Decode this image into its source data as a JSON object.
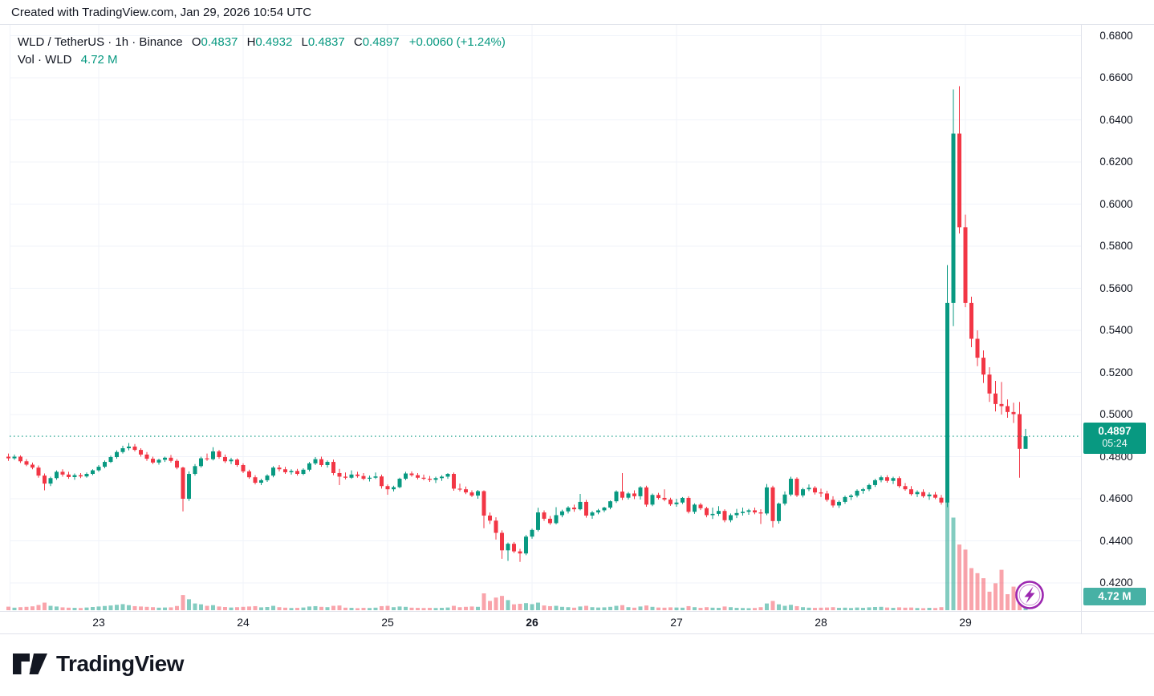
{
  "attribution": "Created with TradingView.com, Jan 29, 2026 10:54 UTC",
  "legend": {
    "title": "WLD / TetherUS · 1h · Binance",
    "ohlc": [
      {
        "label": "O",
        "value": "0.4837"
      },
      {
        "label": "H",
        "value": "0.4932"
      },
      {
        "label": "L",
        "value": "0.4837"
      },
      {
        "label": "C",
        "value": "0.4897"
      }
    ],
    "change": "+0.0060 (+1.24%)",
    "volume_label": "Vol · WLD",
    "volume_value": "4.72 M"
  },
  "price_scale": {
    "labels": [
      "0.6800",
      "0.6600",
      "0.6400",
      "0.6200",
      "0.6000",
      "0.5800",
      "0.5600",
      "0.5400",
      "0.5200",
      "0.5000",
      "0.4800",
      "0.4600",
      "0.4400",
      "0.4200"
    ],
    "last_price_label": "0.4897",
    "countdown": "05:24",
    "volume_badge": "4.72 M"
  },
  "time_scale": {
    "labels": [
      {
        "text": "23",
        "index": 15,
        "bold": false
      },
      {
        "text": "24",
        "index": 39,
        "bold": false
      },
      {
        "text": "25",
        "index": 63,
        "bold": false
      },
      {
        "text": "26",
        "index": 87,
        "bold": true
      },
      {
        "text": "27",
        "index": 111,
        "bold": false
      },
      {
        "text": "28",
        "index": 135,
        "bold": false
      },
      {
        "text": "29",
        "index": 159,
        "bold": false
      }
    ]
  },
  "logo_text": "TradingView",
  "colors": {
    "up": "#089981",
    "down": "#f23645",
    "vol_up": "rgba(8,153,129,0.5)",
    "vol_down": "rgba(242,54,69,0.45)",
    "price_line": "#089981",
    "price_badge_bg": "#089981",
    "volume_badge_bg": "#47b1a5",
    "flash": "#9c27b0",
    "grid": "#f0f3fa",
    "border": "#e0e3eb",
    "text": "#131722"
  },
  "chart_data": {
    "type": "candlestick",
    "title": "WLD / TetherUS · 1h · Binance",
    "symbol": "WLD / TetherUS",
    "interval": "1h",
    "exchange": "Binance",
    "last_price": 0.4897,
    "last_candle": {
      "open": 0.4837,
      "high": 0.4932,
      "low": 0.4837,
      "close": 0.4897,
      "volume_m": 4.72
    },
    "change": "+0.0060 (+1.24%)",
    "y_axis": {
      "min": 0.42,
      "max": 0.68,
      "step": 0.02
    },
    "volume_axis": {
      "max_millions": 80
    },
    "x_range": "Jan 22 09:00 - Jan 29 10:00 UTC, hourly",
    "candles_format": [
      "open",
      "high",
      "low",
      "close",
      "volume_millions"
    ],
    "candles": [
      [
        0.48,
        0.4815,
        0.478,
        0.4792,
        2.1
      ],
      [
        0.4792,
        0.481,
        0.4785,
        0.48,
        1.5
      ],
      [
        0.48,
        0.4806,
        0.477,
        0.4778,
        1.8
      ],
      [
        0.4778,
        0.4788,
        0.4755,
        0.4762,
        2.0
      ],
      [
        0.4762,
        0.4772,
        0.474,
        0.4748,
        2.3
      ],
      [
        0.4748,
        0.4758,
        0.47,
        0.471,
        3.1
      ],
      [
        0.471,
        0.472,
        0.464,
        0.4672,
        4.5
      ],
      [
        0.4672,
        0.4705,
        0.466,
        0.4698,
        2.6
      ],
      [
        0.4698,
        0.4735,
        0.469,
        0.4728,
        2.2
      ],
      [
        0.4728,
        0.474,
        0.4705,
        0.4715,
        1.7
      ],
      [
        0.4715,
        0.4728,
        0.4695,
        0.4703,
        1.5
      ],
      [
        0.4703,
        0.472,
        0.469,
        0.4712,
        1.4
      ],
      [
        0.4712,
        0.4722,
        0.4698,
        0.4706,
        1.3
      ],
      [
        0.4706,
        0.4725,
        0.47,
        0.4718,
        1.6
      ],
      [
        0.4718,
        0.474,
        0.4712,
        0.4735,
        1.9
      ],
      [
        0.4735,
        0.476,
        0.4728,
        0.4752,
        2.2
      ],
      [
        0.4752,
        0.4782,
        0.4745,
        0.4775,
        2.5
      ],
      [
        0.4775,
        0.4805,
        0.477,
        0.4798,
        2.8
      ],
      [
        0.4798,
        0.483,
        0.479,
        0.4822,
        3.2
      ],
      [
        0.4822,
        0.4852,
        0.4815,
        0.484,
        3.6
      ],
      [
        0.484,
        0.4865,
        0.483,
        0.4848,
        3.0
      ],
      [
        0.4848,
        0.486,
        0.4825,
        0.4832,
        2.4
      ],
      [
        0.4832,
        0.484,
        0.48,
        0.481,
        2.2
      ],
      [
        0.481,
        0.4822,
        0.478,
        0.479,
        2.0
      ],
      [
        0.479,
        0.48,
        0.4765,
        0.4772,
        1.8
      ],
      [
        0.4772,
        0.479,
        0.4762,
        0.4785,
        1.5
      ],
      [
        0.4785,
        0.48,
        0.4775,
        0.4795,
        1.6
      ],
      [
        0.4795,
        0.4808,
        0.4772,
        0.478,
        1.7
      ],
      [
        0.478,
        0.4788,
        0.474,
        0.4748,
        2.5
      ],
      [
        0.4748,
        0.4752,
        0.454,
        0.46,
        9.0
      ],
      [
        0.46,
        0.473,
        0.459,
        0.4718,
        6.5
      ],
      [
        0.4718,
        0.4765,
        0.471,
        0.4755,
        4.0
      ],
      [
        0.4755,
        0.48,
        0.4748,
        0.4792,
        3.5
      ],
      [
        0.4792,
        0.4815,
        0.478,
        0.4788,
        2.6
      ],
      [
        0.4788,
        0.4845,
        0.4782,
        0.4825,
        3.0
      ],
      [
        0.4825,
        0.4832,
        0.479,
        0.4798,
        2.2
      ],
      [
        0.4798,
        0.481,
        0.477,
        0.4778,
        1.9
      ],
      [
        0.4778,
        0.4795,
        0.4765,
        0.4786,
        1.6
      ],
      [
        0.4786,
        0.4792,
        0.4752,
        0.476,
        1.8
      ],
      [
        0.476,
        0.4768,
        0.4722,
        0.473,
        2.0
      ],
      [
        0.473,
        0.4738,
        0.4695,
        0.4702,
        2.2
      ],
      [
        0.4702,
        0.4712,
        0.4668,
        0.4676,
        2.4
      ],
      [
        0.4676,
        0.4695,
        0.4665,
        0.4688,
        1.7
      ],
      [
        0.4688,
        0.4716,
        0.468,
        0.471,
        1.9
      ],
      [
        0.471,
        0.4755,
        0.4702,
        0.4748,
        2.6
      ],
      [
        0.4748,
        0.476,
        0.473,
        0.474,
        1.8
      ],
      [
        0.474,
        0.4752,
        0.4718,
        0.4726,
        1.5
      ],
      [
        0.4726,
        0.474,
        0.4715,
        0.4732,
        1.3
      ],
      [
        0.4732,
        0.4742,
        0.471,
        0.4718,
        1.4
      ],
      [
        0.4718,
        0.4745,
        0.4712,
        0.4738,
        1.6
      ],
      [
        0.4738,
        0.4775,
        0.473,
        0.4768,
        2.2
      ],
      [
        0.4768,
        0.4798,
        0.476,
        0.4788,
        2.4
      ],
      [
        0.4788,
        0.48,
        0.4752,
        0.476,
        2.0
      ],
      [
        0.476,
        0.4782,
        0.4748,
        0.4775,
        1.8
      ],
      [
        0.4775,
        0.4786,
        0.4712,
        0.4722,
        2.6
      ],
      [
        0.4722,
        0.4742,
        0.4665,
        0.4705,
        2.8
      ],
      [
        0.4705,
        0.4725,
        0.4692,
        0.47,
        1.5
      ],
      [
        0.47,
        0.4735,
        0.4695,
        0.4715,
        1.4
      ],
      [
        0.4715,
        0.4728,
        0.47,
        0.4708,
        1.2
      ],
      [
        0.4708,
        0.4722,
        0.4688,
        0.4695,
        1.4
      ],
      [
        0.4695,
        0.471,
        0.4682,
        0.47,
        1.3
      ],
      [
        0.47,
        0.4725,
        0.4694,
        0.4706,
        1.5
      ],
      [
        0.4706,
        0.4715,
        0.4648,
        0.466,
        2.4
      ],
      [
        0.466,
        0.4668,
        0.4619,
        0.4645,
        2.6
      ],
      [
        0.4645,
        0.4662,
        0.4635,
        0.4655,
        1.8
      ],
      [
        0.4655,
        0.47,
        0.465,
        0.4695,
        2.2
      ],
      [
        0.4695,
        0.4728,
        0.4688,
        0.472,
        2.0
      ],
      [
        0.472,
        0.473,
        0.4705,
        0.4712,
        1.5
      ],
      [
        0.4712,
        0.4722,
        0.4692,
        0.47,
        1.4
      ],
      [
        0.47,
        0.4715,
        0.4688,
        0.4695,
        1.3
      ],
      [
        0.4695,
        0.4708,
        0.468,
        0.469,
        1.4
      ],
      [
        0.469,
        0.4705,
        0.4675,
        0.4698,
        1.3
      ],
      [
        0.4698,
        0.4712,
        0.4685,
        0.4705,
        1.4
      ],
      [
        0.4705,
        0.4722,
        0.4695,
        0.4718,
        1.6
      ],
      [
        0.4718,
        0.4725,
        0.4638,
        0.4648,
        2.6
      ],
      [
        0.4648,
        0.4672,
        0.4635,
        0.4645,
        1.8
      ],
      [
        0.4645,
        0.4658,
        0.4622,
        0.463,
        2.0
      ],
      [
        0.463,
        0.464,
        0.4608,
        0.4615,
        2.2
      ],
      [
        0.4615,
        0.4642,
        0.46,
        0.4636,
        2.0
      ],
      [
        0.4636,
        0.464,
        0.446,
        0.452,
        10.0
      ],
      [
        0.452,
        0.4535,
        0.448,
        0.4496,
        5.5
      ],
      [
        0.4496,
        0.4512,
        0.4406,
        0.4438,
        7.5
      ],
      [
        0.4438,
        0.445,
        0.4315,
        0.4355,
        8.5
      ],
      [
        0.4355,
        0.4392,
        0.4305,
        0.4386,
        6.0
      ],
      [
        0.4386,
        0.4395,
        0.4342,
        0.435,
        3.5
      ],
      [
        0.435,
        0.4362,
        0.43,
        0.434,
        3.8
      ],
      [
        0.434,
        0.4428,
        0.4332,
        0.442,
        4.2
      ],
      [
        0.442,
        0.4458,
        0.441,
        0.4452,
        3.6
      ],
      [
        0.4452,
        0.4557,
        0.4445,
        0.4535,
        4.5
      ],
      [
        0.4535,
        0.4545,
        0.4495,
        0.4505,
        2.8
      ],
      [
        0.4505,
        0.4518,
        0.4476,
        0.4484,
        2.4
      ],
      [
        0.4484,
        0.456,
        0.4478,
        0.4522,
        2.6
      ],
      [
        0.4522,
        0.4548,
        0.4512,
        0.454,
        2.0
      ],
      [
        0.454,
        0.4565,
        0.453,
        0.4558,
        1.8
      ],
      [
        0.4558,
        0.4572,
        0.4538,
        0.455,
        1.5
      ],
      [
        0.455,
        0.4623,
        0.4545,
        0.4585,
        2.2
      ],
      [
        0.4585,
        0.4595,
        0.451,
        0.452,
        2.6
      ],
      [
        0.452,
        0.4542,
        0.4505,
        0.4535,
        1.8
      ],
      [
        0.4535,
        0.4552,
        0.4526,
        0.4545,
        1.6
      ],
      [
        0.4545,
        0.4562,
        0.4536,
        0.4558,
        1.7
      ],
      [
        0.4558,
        0.4592,
        0.455,
        0.4588,
        2.0
      ],
      [
        0.4588,
        0.464,
        0.458,
        0.4634,
        2.6
      ],
      [
        0.4634,
        0.4722,
        0.4594,
        0.4605,
        3.0
      ],
      [
        0.4605,
        0.4632,
        0.4596,
        0.4625,
        1.8
      ],
      [
        0.4625,
        0.464,
        0.4598,
        0.4612,
        1.5
      ],
      [
        0.4612,
        0.466,
        0.4596,
        0.4654,
        2.2
      ],
      [
        0.4654,
        0.4662,
        0.4562,
        0.4572,
        2.8
      ],
      [
        0.4572,
        0.4625,
        0.4565,
        0.4618,
        2.0
      ],
      [
        0.4618,
        0.4628,
        0.4596,
        0.4604,
        1.6
      ],
      [
        0.4604,
        0.4645,
        0.4588,
        0.4596,
        1.5
      ],
      [
        0.4596,
        0.4605,
        0.4566,
        0.4574,
        1.7
      ],
      [
        0.4574,
        0.46,
        0.4562,
        0.4582,
        1.6
      ],
      [
        0.4582,
        0.4608,
        0.4575,
        0.4604,
        1.5
      ],
      [
        0.4604,
        0.4612,
        0.453,
        0.4538,
        2.4
      ],
      [
        0.4538,
        0.4578,
        0.4528,
        0.4572,
        1.8
      ],
      [
        0.4572,
        0.458,
        0.4546,
        0.4555,
        1.4
      ],
      [
        0.4555,
        0.4562,
        0.4512,
        0.4522,
        1.8
      ],
      [
        0.4522,
        0.4558,
        0.4504,
        0.4528,
        1.5
      ],
      [
        0.4528,
        0.4565,
        0.4518,
        0.4542,
        1.4
      ],
      [
        0.4542,
        0.455,
        0.4488,
        0.4498,
        2.2
      ],
      [
        0.4498,
        0.453,
        0.4488,
        0.4522,
        1.8
      ],
      [
        0.4522,
        0.4552,
        0.4508,
        0.4532,
        1.4
      ],
      [
        0.4532,
        0.4558,
        0.452,
        0.4538,
        1.3
      ],
      [
        0.4538,
        0.4552,
        0.4524,
        0.4545,
        1.2
      ],
      [
        0.4545,
        0.4558,
        0.4526,
        0.4535,
        1.3
      ],
      [
        0.4535,
        0.455,
        0.448,
        0.453,
        1.8
      ],
      [
        0.453,
        0.467,
        0.4522,
        0.4654,
        4.0
      ],
      [
        0.4654,
        0.4662,
        0.4464,
        0.4494,
        5.5
      ],
      [
        0.4494,
        0.4582,
        0.4482,
        0.4577,
        3.5
      ],
      [
        0.4577,
        0.4635,
        0.4568,
        0.462,
        2.6
      ],
      [
        0.462,
        0.4705,
        0.4612,
        0.4695,
        3.2
      ],
      [
        0.4695,
        0.4702,
        0.4608,
        0.4616,
        2.4
      ],
      [
        0.4616,
        0.4652,
        0.4606,
        0.4645,
        1.8
      ],
      [
        0.4645,
        0.4668,
        0.4636,
        0.4652,
        1.5
      ],
      [
        0.4652,
        0.466,
        0.462,
        0.463,
        1.4
      ],
      [
        0.463,
        0.4648,
        0.4608,
        0.4625,
        1.5
      ],
      [
        0.4625,
        0.4638,
        0.4586,
        0.4595,
        1.6
      ],
      [
        0.4595,
        0.4612,
        0.4558,
        0.4568,
        1.8
      ],
      [
        0.4568,
        0.4592,
        0.4556,
        0.4585,
        1.4
      ],
      [
        0.4585,
        0.4615,
        0.4576,
        0.4608,
        1.5
      ],
      [
        0.4608,
        0.4622,
        0.4594,
        0.4615,
        1.3
      ],
      [
        0.4615,
        0.4645,
        0.4606,
        0.4638,
        1.6
      ],
      [
        0.4638,
        0.4652,
        0.4624,
        0.4645,
        1.4
      ],
      [
        0.4645,
        0.4672,
        0.4636,
        0.4665,
        1.7
      ],
      [
        0.4665,
        0.4695,
        0.4656,
        0.4688,
        1.9
      ],
      [
        0.4688,
        0.471,
        0.4678,
        0.4702,
        2.0
      ],
      [
        0.4702,
        0.4712,
        0.4676,
        0.4685,
        1.6
      ],
      [
        0.4685,
        0.4705,
        0.467,
        0.4698,
        1.4
      ],
      [
        0.4698,
        0.4706,
        0.4652,
        0.466,
        1.7
      ],
      [
        0.466,
        0.4675,
        0.4638,
        0.4645,
        1.5
      ],
      [
        0.4645,
        0.466,
        0.4615,
        0.4622,
        1.6
      ],
      [
        0.4622,
        0.464,
        0.4608,
        0.4632,
        1.3
      ],
      [
        0.4632,
        0.4645,
        0.4605,
        0.4612,
        1.2
      ],
      [
        0.4612,
        0.463,
        0.4595,
        0.462,
        1.4
      ],
      [
        0.462,
        0.4632,
        0.4598,
        0.4605,
        1.3
      ],
      [
        0.4605,
        0.4618,
        0.4572,
        0.4582,
        1.8
      ],
      [
        0.4582,
        0.571,
        0.456,
        0.553,
        79.0
      ],
      [
        0.553,
        0.6545,
        0.542,
        0.6335,
        55.0
      ],
      [
        0.6335,
        0.656,
        0.586,
        0.589,
        39.0
      ],
      [
        0.589,
        0.595,
        0.551,
        0.553,
        36.0
      ],
      [
        0.553,
        0.556,
        0.532,
        0.536,
        25.0
      ],
      [
        0.536,
        0.54,
        0.523,
        0.527,
        22.0
      ],
      [
        0.527,
        0.5305,
        0.515,
        0.519,
        19.0
      ],
      [
        0.519,
        0.5225,
        0.506,
        0.51,
        11.0
      ],
      [
        0.51,
        0.516,
        0.5015,
        0.505,
        16.0
      ],
      [
        0.505,
        0.5155,
        0.5,
        0.504,
        24.0
      ],
      [
        0.504,
        0.5072,
        0.4985,
        0.5012,
        9.5
      ],
      [
        0.5012,
        0.5056,
        0.496,
        0.5002,
        14.0
      ],
      [
        0.5002,
        0.506,
        0.47,
        0.4837,
        13.5
      ],
      [
        0.4837,
        0.4932,
        0.4837,
        0.4897,
        4.72
      ]
    ]
  }
}
